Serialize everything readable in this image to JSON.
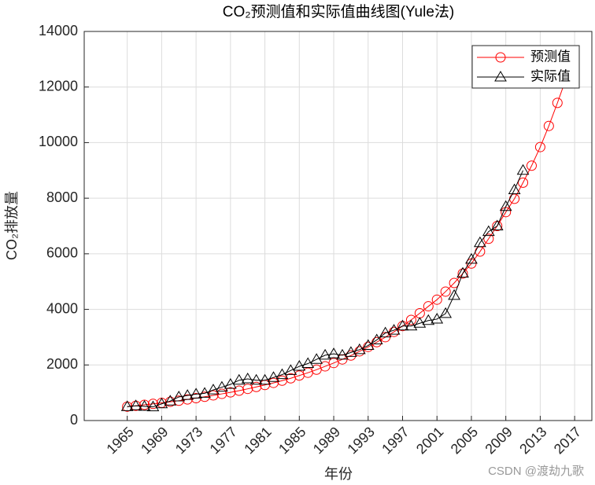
{
  "chart_data": {
    "type": "line",
    "title": "CO₂预测值和实际值曲线图(Yule法)",
    "x_label": "年份",
    "y_label": "CO₂排放量",
    "watermark": "CSDN @渡劫九歌",
    "x": [
      1965,
      1966,
      1967,
      1968,
      1969,
      1970,
      1971,
      1972,
      1973,
      1974,
      1975,
      1976,
      1977,
      1978,
      1979,
      1980,
      1981,
      1982,
      1983,
      1984,
      1985,
      1986,
      1987,
      1988,
      1989,
      1990,
      1991,
      1992,
      1993,
      1994,
      1995,
      1996,
      1997,
      1998,
      1999,
      2000,
      2001,
      2002,
      2003,
      2004,
      2005,
      2006,
      2007,
      2008,
      2009,
      2010,
      2011,
      2012,
      2013,
      2014,
      2015,
      2016
    ],
    "series": [
      {
        "name": "预测值",
        "color": "#ff0000",
        "marker": "circle",
        "values": [
          500,
          530,
          565,
          600,
          635,
          675,
          715,
          760,
          805,
          855,
          905,
          960,
          1015,
          1075,
          1140,
          1210,
          1280,
          1355,
          1435,
          1520,
          1620,
          1720,
          1830,
          1950,
          2070,
          2200,
          2340,
          2490,
          2650,
          2820,
          3000,
          3190,
          3400,
          3620,
          3860,
          4110,
          4350,
          4640,
          4950,
          5290,
          5650,
          6080,
          6540,
          7000,
          7500,
          7980,
          8560,
          9170,
          9840,
          10600,
          11430,
          12300
        ]
      },
      {
        "name": "实际值",
        "color": "#000000",
        "marker": "triangle",
        "values": [
          500,
          530,
          510,
          490,
          600,
          700,
          850,
          900,
          950,
          980,
          1100,
          1200,
          1300,
          1450,
          1500,
          1450,
          1450,
          1550,
          1650,
          1800,
          1950,
          2050,
          2200,
          2350,
          2400,
          2350,
          2450,
          2550,
          2700,
          2900,
          3150,
          3250,
          3400,
          3400,
          3500,
          3600,
          3650,
          3850,
          4500,
          5300,
          5800,
          6400,
          6800,
          7000,
          7700,
          8300,
          9000,
          null,
          null,
          null,
          null,
          null
        ]
      }
    ],
    "xlim": [
      1960,
      2019
    ],
    "xticks": [
      1965,
      1969,
      1973,
      1977,
      1981,
      1985,
      1989,
      1993,
      1997,
      2001,
      2005,
      2009,
      2013,
      2017
    ],
    "ylim": [
      0,
      14000
    ],
    "yticks": [
      0,
      2000,
      4000,
      6000,
      8000,
      10000,
      12000,
      14000
    ],
    "grid": true,
    "legend": "northeast"
  }
}
